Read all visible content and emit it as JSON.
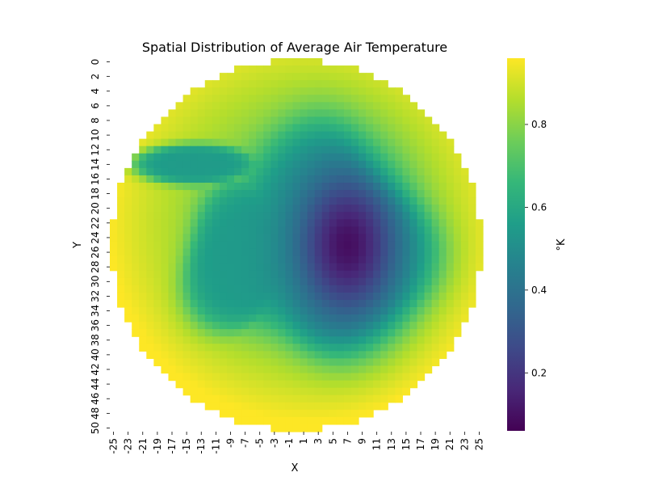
{
  "chart_data": {
    "type": "heatmap",
    "title": "Spatial Distribution of Average Air Temperature",
    "xlabel": "X",
    "ylabel": "Y",
    "x_range": [
      -25,
      25
    ],
    "y_range": [
      0,
      50
    ],
    "x_tick_labels": [
      "-25",
      "-23",
      "-21",
      "-19",
      "-17",
      "-15",
      "-13",
      "-11",
      "-9",
      "-7",
      "-5",
      "-3",
      "-1",
      "1",
      "3",
      "5",
      "7",
      "9",
      "11",
      "13",
      "15",
      "17",
      "19",
      "21",
      "23",
      "25"
    ],
    "y_tick_labels": [
      "0",
      "2",
      "4",
      "6",
      "8",
      "10",
      "12",
      "14",
      "16",
      "18",
      "20",
      "22",
      "24",
      "26",
      "28",
      "30",
      "32",
      "34",
      "36",
      "38",
      "40",
      "42",
      "44",
      "46",
      "48",
      "50"
    ],
    "mask": "circular domain, radius 25 grid cells centered at X=0, Y=25; cells outside are blank",
    "colorbar": {
      "label": "°K",
      "colormap": "viridis",
      "vmin": 0.06,
      "vmax": 0.96,
      "ticks": [
        0.2,
        0.4,
        0.6,
        0.8
      ],
      "tick_labels": [
        "0.2",
        "0.4",
        "0.6",
        "0.8"
      ]
    },
    "value_pattern": {
      "edge_value": 0.94,
      "outer_ring_value": 0.82,
      "cold_core_min": 0.07,
      "cold_core_location": {
        "x": 7,
        "y": 25
      },
      "inner_region_value": 0.55
    }
  }
}
